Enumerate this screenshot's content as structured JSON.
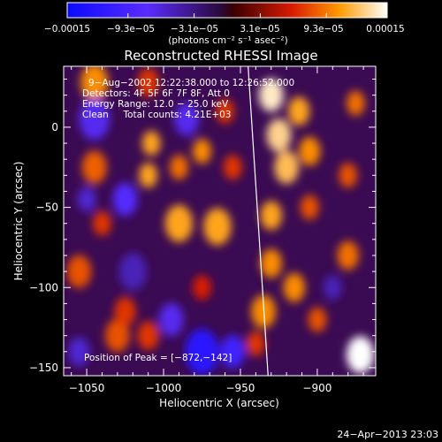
{
  "chart_data": {
    "type": "heatmap",
    "title": "Reconstructed RHESSI Image",
    "xlabel": "Heliocentric X (arcsec)",
    "ylabel": "Heliocentric Y (arcsec)",
    "xlim": [
      -1065,
      -862
    ],
    "ylim": [
      -155,
      38
    ],
    "xticks": [
      -1050,
      -1000,
      -950,
      -900
    ],
    "xtick_labels": [
      "−1050",
      "−1000",
      "−950",
      "−900"
    ],
    "yticks": [
      0,
      -50,
      -100,
      -150
    ],
    "ytick_labels": [
      "0",
      "−50",
      "−100",
      "−150"
    ],
    "colorbar": {
      "min": -0.00015,
      "max": 0.00015,
      "tick_values": [
        -0.00015,
        -9.3e-05,
        -3.1e-05,
        3.1e-05,
        9.3e-05,
        0.00015
      ],
      "tick_labels": [
        "−0.00015",
        "−9.3e−05",
        "−3.1e−05",
        "3.1e−05",
        "9.3e−05",
        "0.00015"
      ],
      "unit_label": "(photons cm⁻² s⁻¹ asec⁻²)"
    },
    "info_lines": [
      "9−Aug−2002 12:22:38.000 to 12:26:52.000",
      "Detectors: 4F 5F 6F 7F 8F, Att 0",
      "Energy Range: 12.0 − 25.0 keV",
      "Clean     Total counts: 4.21E+03"
    ],
    "peak_text": "Position of Peak = [−872,−142]",
    "limb_line": [
      [
        -945,
        38
      ],
      [
        -932,
        -155
      ]
    ],
    "blobs": [
      {
        "x": -1045,
        "y": 28,
        "r": 9,
        "v": 0.0001
      },
      {
        "x": -1045,
        "y": -25,
        "r": 8,
        "v": 8.5e-05
      },
      {
        "x": -1040,
        "y": -60,
        "r": 6,
        "v": 7e-05
      },
      {
        "x": -1055,
        "y": -90,
        "r": 8,
        "v": 8e-05
      },
      {
        "x": -1030,
        "y": -130,
        "r": 8,
        "v": 8e-05
      },
      {
        "x": -1010,
        "y": 28,
        "r": 7,
        "v": 7e-05
      },
      {
        "x": -1010,
        "y": -30,
        "r": 6,
        "v": 0.00011
      },
      {
        "x": -1008,
        "y": -10,
        "r": 6,
        "v": 0.00011
      },
      {
        "x": -1025,
        "y": -115,
        "r": 7,
        "v": 7e-05
      },
      {
        "x": -1010,
        "y": -130,
        "r": 7,
        "v": 7e-05
      },
      {
        "x": -990,
        "y": -25,
        "r": 6,
        "v": 9e-05
      },
      {
        "x": -975,
        "y": -15,
        "r": 6,
        "v": 0.0001
      },
      {
        "x": -955,
        "y": -25,
        "r": 6,
        "v": 7e-05
      },
      {
        "x": -990,
        "y": -60,
        "r": 9,
        "v": 0.00011
      },
      {
        "x": -965,
        "y": -62,
        "r": 9,
        "v": 0.00011
      },
      {
        "x": -975,
        "y": -100,
        "r": 6,
        "v": 6e-05
      },
      {
        "x": -960,
        "y": 10,
        "r": 6,
        "v": 7e-05
      },
      {
        "x": -930,
        "y": 20,
        "r": 8,
        "v": 0.00014
      },
      {
        "x": -925,
        "y": -5,
        "r": 8,
        "v": 0.00013
      },
      {
        "x": -920,
        "y": -25,
        "r": 8,
        "v": 0.00012
      },
      {
        "x": -930,
        "y": -55,
        "r": 7,
        "v": 0.00011
      },
      {
        "x": -930,
        "y": -85,
        "r": 7,
        "v": 0.0001
      },
      {
        "x": -935,
        "y": -115,
        "r": 8,
        "v": 0.0001
      },
      {
        "x": -940,
        "y": -135,
        "r": 6,
        "v": 7e-05
      },
      {
        "x": -912,
        "y": 10,
        "r": 7,
        "v": 0.00011
      },
      {
        "x": -905,
        "y": -15,
        "r": 7,
        "v": 0.0001
      },
      {
        "x": -905,
        "y": -50,
        "r": 6,
        "v": 8e-05
      },
      {
        "x": -915,
        "y": -100,
        "r": 7,
        "v": 0.0001
      },
      {
        "x": -900,
        "y": -120,
        "r": 6,
        "v": 8e-05
      },
      {
        "x": -875,
        "y": 15,
        "r": 6,
        "v": 9e-05
      },
      {
        "x": -880,
        "y": -30,
        "r": 6,
        "v": 8e-05
      },
      {
        "x": -880,
        "y": -80,
        "r": 7,
        "v": 9e-05
      },
      {
        "x": -872,
        "y": -142,
        "r": 9,
        "v": 0.00015
      },
      {
        "x": -1045,
        "y": 5,
        "r": 10,
        "v": -7e-05
      },
      {
        "x": -1025,
        "y": -45,
        "r": 8,
        "v": -8e-05
      },
      {
        "x": -1050,
        "y": -45,
        "r": 6,
        "v": -6e-05
      },
      {
        "x": -985,
        "y": 5,
        "r": 8,
        "v": -7e-05
      },
      {
        "x": -1020,
        "y": -90,
        "r": 9,
        "v": -5e-05
      },
      {
        "x": -975,
        "y": -140,
        "r": 11,
        "v": -0.00012
      },
      {
        "x": -955,
        "y": -140,
        "r": 8,
        "v": -0.0001
      },
      {
        "x": -995,
        "y": -120,
        "r": 8,
        "v": -7e-05
      },
      {
        "x": -890,
        "y": -100,
        "r": 6,
        "v": -5e-05
      },
      {
        "x": -1055,
        "y": -140,
        "r": 7,
        "v": -6e-05
      }
    ]
  },
  "footer": {
    "timestamp": "24−Apr−2013 23:03"
  }
}
